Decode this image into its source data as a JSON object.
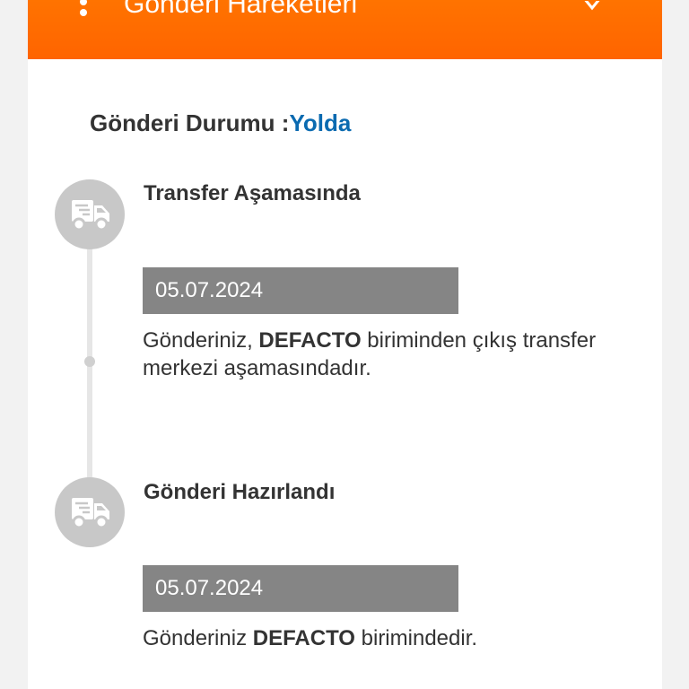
{
  "header": {
    "title": "Gönderi Hareketleri"
  },
  "status": {
    "label": "Gönderi Durumu :",
    "value": "Yolda"
  },
  "events": [
    {
      "title": "Transfer Aşamasında",
      "date": "05.07.2024",
      "desc_pre": "Gönderiniz, ",
      "desc_bold": "DEFACTO",
      "desc_post": " biriminden çıkış transfer merkezi aşamasındadır.",
      "icon": "truck-icon"
    },
    {
      "title": "Gönderi Hazırlandı",
      "date": "05.07.2024",
      "desc_pre": "Gönderiniz ",
      "desc_bold": "DEFACTO",
      "desc_post": " birimindedir.",
      "icon": "truck-icon"
    }
  ],
  "colors": {
    "header": "#ff6f00",
    "status": "#0a6ab0"
  }
}
